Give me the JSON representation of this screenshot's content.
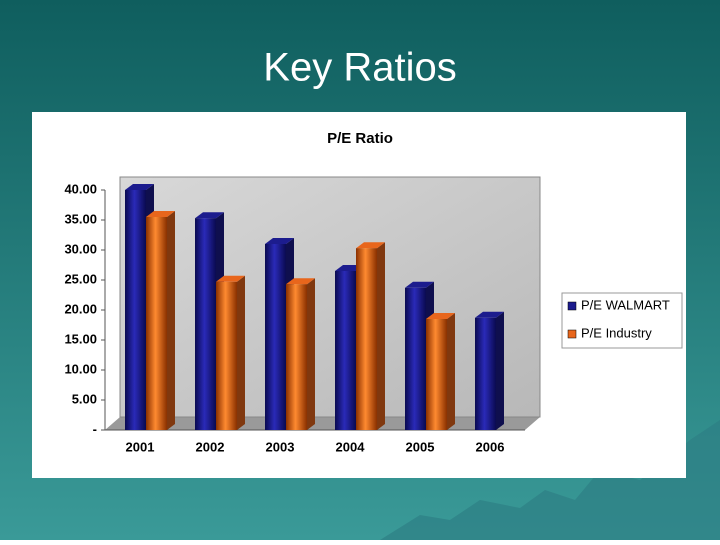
{
  "slide": {
    "title": "Key Ratios"
  },
  "chart_data": {
    "type": "bar3d",
    "title": "P/E Ratio",
    "categories": [
      "2001",
      "2002",
      "2003",
      "2004",
      "2005",
      "2006"
    ],
    "series": [
      {
        "name": "P/E WALMART",
        "color": "#1c1c8e",
        "values": [
          40.0,
          35.3,
          31.0,
          26.5,
          23.7,
          18.7
        ]
      },
      {
        "name": "P/E Industry",
        "color": "#e8661c",
        "values": [
          35.5,
          24.7,
          24.3,
          30.3,
          18.5,
          null
        ]
      }
    ],
    "ylim": [
      0,
      40
    ],
    "yticks": [
      {
        "value": 0,
        "label": "-"
      },
      {
        "value": 5,
        "label": "5.00"
      },
      {
        "value": 10,
        "label": "10.00"
      },
      {
        "value": 15,
        "label": "15.00"
      },
      {
        "value": 20,
        "label": "20.00"
      },
      {
        "value": 25,
        "label": "25.00"
      },
      {
        "value": 30,
        "label": "30.00"
      },
      {
        "value": 35,
        "label": "35.00"
      },
      {
        "value": 40,
        "label": "40.00"
      }
    ],
    "grid": false,
    "legend": "right"
  }
}
